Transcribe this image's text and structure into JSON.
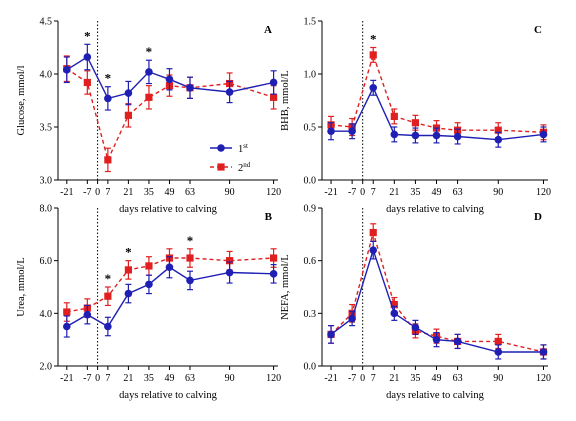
{
  "colors": {
    "first": "#1f1fb4",
    "second": "#e02020",
    "axis": "#000000"
  },
  "x_label": "days relative to calving",
  "x_ticks": [
    -21,
    -7,
    0,
    7,
    21,
    35,
    49,
    63,
    90,
    120
  ],
  "x_tick_labels": [
    "-21",
    "-7",
    "0",
    "7",
    "21",
    "35",
    "49",
    "63",
    "90",
    "120"
  ],
  "legend": {
    "first": "1",
    "first_sup": "st",
    "second": "2",
    "second_sup": "nd"
  },
  "calving_line_day": 0,
  "chart_data": [
    {
      "type": "line",
      "panel": "A",
      "ylabel": "Glucose, mmol/l",
      "ylim": [
        3.0,
        4.5
      ],
      "yticks": [
        3.0,
        3.5,
        4.0,
        4.5
      ],
      "ytick_labels": [
        "3.0",
        "3.5",
        "4.0",
        "4.5"
      ],
      "x": [
        -21,
        -7,
        7,
        21,
        35,
        49,
        63,
        90,
        120
      ],
      "series": [
        {
          "name": "1st",
          "values": [
            4.04,
            4.16,
            3.77,
            3.82,
            4.02,
            3.95,
            3.87,
            3.83,
            3.92
          ],
          "errors": [
            0.12,
            0.12,
            0.11,
            0.11,
            0.11,
            0.1,
            0.1,
            0.1,
            0.11
          ]
        },
        {
          "name": "2nd",
          "values": [
            4.05,
            3.92,
            3.19,
            3.61,
            3.78,
            3.89,
            3.87,
            3.91,
            3.78
          ],
          "errors": [
            0.12,
            0.11,
            0.11,
            0.11,
            0.11,
            0.1,
            0.1,
            0.1,
            0.11
          ]
        }
      ],
      "significance_days": [
        -7,
        7,
        35
      ],
      "legend": true
    },
    {
      "type": "line",
      "panel": "B",
      "ylabel": "Urea, mmol/L",
      "ylim": [
        2.0,
        8.0
      ],
      "yticks": [
        2.0,
        4.0,
        6.0,
        8.0
      ],
      "ytick_labels": [
        "2.0",
        "4.0",
        "6.0",
        "8.0"
      ],
      "x": [
        -21,
        -7,
        7,
        21,
        35,
        49,
        63,
        90,
        120
      ],
      "series": [
        {
          "name": "1st",
          "values": [
            3.5,
            3.95,
            3.5,
            4.75,
            5.1,
            5.75,
            5.25,
            5.55,
            5.5
          ],
          "errors": [
            0.4,
            0.35,
            0.35,
            0.35,
            0.35,
            0.4,
            0.35,
            0.4,
            0.35
          ]
        },
        {
          "name": "2nd",
          "values": [
            4.05,
            4.2,
            4.65,
            5.65,
            5.8,
            6.1,
            6.1,
            6.0,
            6.1
          ],
          "errors": [
            0.35,
            0.35,
            0.35,
            0.35,
            0.35,
            0.35,
            0.35,
            0.35,
            0.35
          ]
        }
      ],
      "significance_days": [
        7,
        21,
        63
      ],
      "legend": false
    },
    {
      "type": "line",
      "panel": "C",
      "ylabel": "BHB, mmol/L",
      "ylim": [
        0.0,
        1.5
      ],
      "yticks": [
        0.0,
        0.5,
        1.0,
        1.5
      ],
      "ytick_labels": [
        "0.0",
        "0.5",
        "1.0",
        "1.5"
      ],
      "x": [
        -21,
        -7,
        7,
        21,
        35,
        49,
        63,
        90,
        120
      ],
      "series": [
        {
          "name": "1st",
          "values": [
            0.46,
            0.46,
            0.87,
            0.43,
            0.42,
            0.42,
            0.41,
            0.38,
            0.43
          ],
          "errors": [
            0.08,
            0.07,
            0.07,
            0.07,
            0.07,
            0.07,
            0.07,
            0.07,
            0.07
          ]
        },
        {
          "name": "2nd",
          "values": [
            0.52,
            0.5,
            1.18,
            0.6,
            0.54,
            0.49,
            0.47,
            0.47,
            0.45
          ],
          "errors": [
            0.08,
            0.08,
            0.07,
            0.07,
            0.07,
            0.07,
            0.07,
            0.07,
            0.07
          ]
        }
      ],
      "significance_days": [
        7
      ],
      "legend": false
    },
    {
      "type": "line",
      "panel": "D",
      "ylabel": "NEFA, mmol/L",
      "ylim": [
        0.0,
        0.9
      ],
      "yticks": [
        0.0,
        0.3,
        0.6,
        0.9
      ],
      "ytick_labels": [
        "0.0",
        "0.3",
        "0.6",
        "0.9"
      ],
      "x": [
        -21,
        -7,
        7,
        21,
        35,
        49,
        63,
        90,
        120
      ],
      "series": [
        {
          "name": "1st",
          "values": [
            0.18,
            0.27,
            0.66,
            0.3,
            0.22,
            0.15,
            0.14,
            0.08,
            0.08
          ],
          "errors": [
            0.05,
            0.04,
            0.05,
            0.04,
            0.04,
            0.04,
            0.04,
            0.04,
            0.04
          ]
        },
        {
          "name": "2nd",
          "values": [
            0.18,
            0.3,
            0.76,
            0.35,
            0.2,
            0.17,
            0.14,
            0.14,
            0.08
          ],
          "errors": [
            0.05,
            0.05,
            0.05,
            0.04,
            0.04,
            0.04,
            0.04,
            0.04,
            0.04
          ]
        }
      ],
      "significance_days": [],
      "legend": false
    }
  ]
}
